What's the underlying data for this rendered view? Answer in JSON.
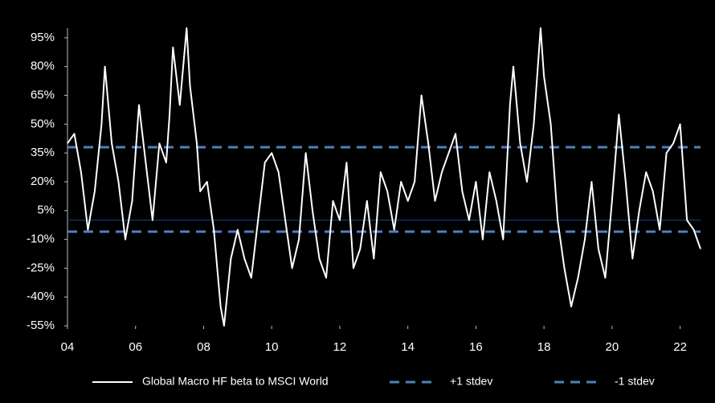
{
  "chart_data": {
    "type": "line",
    "x": [
      2004.0,
      2004.2,
      2004.4,
      2004.6,
      2004.8,
      2005.0,
      2005.1,
      2005.3,
      2005.5,
      2005.7,
      2005.9,
      2006.1,
      2006.3,
      2006.5,
      2006.7,
      2006.9,
      2007.0,
      2007.1,
      2007.3,
      2007.5,
      2007.6,
      2007.8,
      2007.9,
      2008.1,
      2008.3,
      2008.5,
      2008.6,
      2008.8,
      2009.0,
      2009.2,
      2009.4,
      2009.6,
      2009.8,
      2010.0,
      2010.2,
      2010.4,
      2010.6,
      2010.8,
      2011.0,
      2011.2,
      2011.4,
      2011.6,
      2011.8,
      2012.0,
      2012.2,
      2012.4,
      2012.6,
      2012.8,
      2013.0,
      2013.2,
      2013.4,
      2013.6,
      2013.8,
      2014.0,
      2014.2,
      2014.4,
      2014.6,
      2014.8,
      2015.0,
      2015.2,
      2015.4,
      2015.6,
      2015.8,
      2016.0,
      2016.2,
      2016.4,
      2016.6,
      2016.8,
      2017.0,
      2017.1,
      2017.3,
      2017.5,
      2017.7,
      2017.9,
      2018.0,
      2018.2,
      2018.4,
      2018.6,
      2018.8,
      2019.0,
      2019.2,
      2019.4,
      2019.6,
      2019.8,
      2020.0,
      2020.2,
      2020.4,
      2020.6,
      2020.8,
      2021.0,
      2021.2,
      2021.4,
      2021.6,
      2021.8,
      2022.0,
      2022.2,
      2022.4,
      2022.6
    ],
    "series": [
      {
        "name": "Global Macro HF beta to MSCI World",
        "color": "#ffffff",
        "values": [
          40,
          45,
          25,
          -5,
          15,
          50,
          80,
          40,
          20,
          -10,
          10,
          60,
          30,
          0,
          40,
          30,
          55,
          90,
          60,
          100,
          70,
          40,
          15,
          20,
          -5,
          -45,
          -55,
          -20,
          -5,
          -20,
          -30,
          0,
          30,
          35,
          25,
          0,
          -25,
          -10,
          35,
          5,
          -20,
          -30,
          10,
          0,
          30,
          -25,
          -15,
          10,
          -20,
          25,
          15,
          -5,
          20,
          10,
          20,
          65,
          40,
          10,
          25,
          35,
          45,
          15,
          0,
          20,
          -10,
          25,
          10,
          -10,
          60,
          80,
          40,
          20,
          50,
          100,
          75,
          50,
          0,
          -25,
          -45,
          -30,
          -10,
          20,
          -15,
          -30,
          10,
          55,
          20,
          -20,
          5,
          25,
          15,
          -5,
          35,
          40,
          50,
          0,
          -5,
          -15
        ]
      }
    ],
    "reference_lines": [
      {
        "name": "+1 stdev",
        "value": 38,
        "color": "#4f81bd"
      },
      {
        "name": "-1 stdev",
        "value": -6,
        "color": "#4f81bd"
      }
    ],
    "zero_line": true,
    "xlim": [
      2004,
      2022.6
    ],
    "xticks": [
      {
        "value": 2004,
        "label": "04"
      },
      {
        "value": 2006,
        "label": "06"
      },
      {
        "value": 2008,
        "label": "08"
      },
      {
        "value": 2010,
        "label": "10"
      },
      {
        "value": 2012,
        "label": "12"
      },
      {
        "value": 2014,
        "label": "14"
      },
      {
        "value": 2016,
        "label": "16"
      },
      {
        "value": 2018,
        "label": "18"
      },
      {
        "value": 2020,
        "label": "20"
      },
      {
        "value": 2022,
        "label": "22"
      }
    ],
    "ylim": [
      -55,
      100
    ],
    "yticks": [
      {
        "value": -55,
        "label": "-55%"
      },
      {
        "value": -40,
        "label": "-40%"
      },
      {
        "value": -25,
        "label": "-25%"
      },
      {
        "value": -10,
        "label": "-10%"
      },
      {
        "value": 5,
        "label": "5%"
      },
      {
        "value": 20,
        "label": "20%"
      },
      {
        "value": 35,
        "label": "35%"
      },
      {
        "value": 50,
        "label": "50%"
      },
      {
        "value": 65,
        "label": "65%"
      },
      {
        "value": 80,
        "label": "80%"
      },
      {
        "value": 95,
        "label": "95%"
      }
    ]
  }
}
